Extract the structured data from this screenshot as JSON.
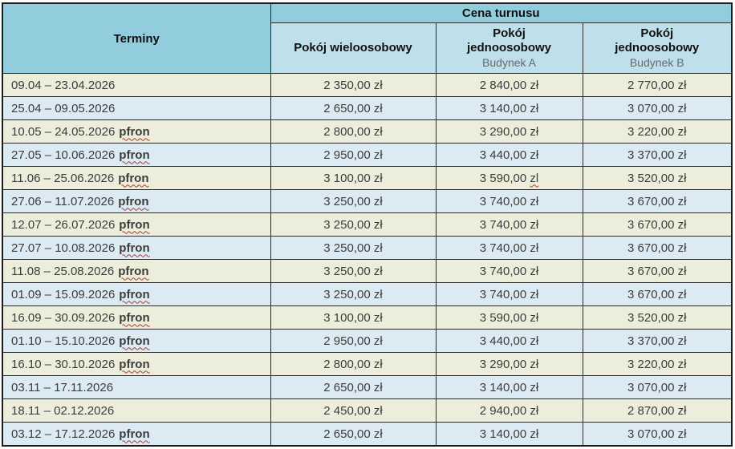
{
  "table": {
    "title": "Cena turnusu",
    "terminy_header": "Terminy",
    "pfron_label": "pfron",
    "currency_suffix": "zł",
    "columns": [
      {
        "label": "Pokój wieloosobowy",
        "sublabel": ""
      },
      {
        "label": "Pokój\njednoosobowy",
        "sublabel": "Budynek A"
      },
      {
        "label": "Pokój\njednoosobowy",
        "sublabel": "Budynek B"
      }
    ],
    "rows": [
      {
        "dates": "09.04 – 23.04.2026",
        "pfron": false,
        "multi": "2 350,00 zł",
        "single_a": "2 840,00 zł",
        "single_b": "2 770,00 zł"
      },
      {
        "dates": "25.04 – 09.05.2026",
        "pfron": false,
        "multi": "2 650,00 zł",
        "single_a": "3 140,00 zł",
        "single_b": "3 070,00 zł"
      },
      {
        "dates": "10.05 – 24.05.2026",
        "pfron": true,
        "multi": "2 800,00 zł",
        "single_a": "3 290,00 zł",
        "single_b": "3 220,00 zł"
      },
      {
        "dates": "27.05 – 10.06.2026",
        "pfron": true,
        "multi": "2 950,00 zł",
        "single_a": "3 440,00 zł",
        "single_b": "3 370,00 zł"
      },
      {
        "dates": "11.06 – 25.06.2026",
        "pfron": true,
        "multi": "3 100,00 zł",
        "single_a": "3 590,00 zl",
        "single_a_spellcheck": true,
        "single_b": "3 520,00 zł"
      },
      {
        "dates": "27.06 – 11.07.2026",
        "pfron": true,
        "multi": "3 250,00 zł",
        "single_a": "3 740,00 zł",
        "single_b": "3 670,00 zł"
      },
      {
        "dates": "12.07 – 26.07.2026",
        "pfron": true,
        "multi": "3 250,00 zł",
        "single_a": "3 740,00 zł",
        "single_b": "3 670,00 zł"
      },
      {
        "dates": "27.07 – 10.08.2026",
        "pfron": true,
        "multi": "3 250,00 zł",
        "single_a": "3 740,00 zł",
        "single_b": "3 670,00 zł"
      },
      {
        "dates": "11.08 – 25.08.2026",
        "pfron": true,
        "multi": "3 250,00 zł",
        "single_a": "3 740,00 zł",
        "single_b": "3 670,00 zł"
      },
      {
        "dates": "01.09 – 15.09.2026",
        "pfron": true,
        "multi": "3 250,00 zł",
        "single_a": "3 740,00 zł",
        "single_b": "3 670,00 zł"
      },
      {
        "dates": "16.09 – 30.09.2026",
        "pfron": true,
        "multi": "3 100,00 zł",
        "single_a": "3 590,00 zł",
        "single_b": "3 520,00 zł"
      },
      {
        "dates": "01.10 – 15.10.2026",
        "pfron": true,
        "multi": "2 950,00 zł",
        "single_a": "3 440,00 zł",
        "single_b": "3 370,00 zł"
      },
      {
        "dates": "16.10 – 30.10.2026",
        "pfron": true,
        "multi": "2 800,00 zł",
        "single_a": "3 290,00 zł",
        "single_b": "3 220,00 zł"
      },
      {
        "dates": "03.11 – 17.11.2026",
        "pfron": false,
        "multi": "2 650,00 zł",
        "single_a": "3 140,00 zł",
        "single_b": "3 070,00 zł"
      },
      {
        "dates": "18.11 – 02.12.2026",
        "pfron": false,
        "multi": "2 450,00 zł",
        "single_a": "2 940,00 zł",
        "single_b": "2 870,00 zł"
      },
      {
        "dates": "03.12 – 17.12.2026",
        "pfron": true,
        "multi": "2 650,00 zł",
        "single_a": "3 140,00 zł",
        "single_b": "3 070,00 zł"
      }
    ],
    "colors": {
      "header_bg": "#92cdde",
      "subheader_bg": "#bfe0ea",
      "row_odd_bg": "#eceedb",
      "row_even_bg": "#dcebf3",
      "text": "#3c3c3c",
      "sublabel_text": "#5f6b70",
      "spellcheck_underline": "#a83c32",
      "border": "#2a2a2a"
    }
  }
}
